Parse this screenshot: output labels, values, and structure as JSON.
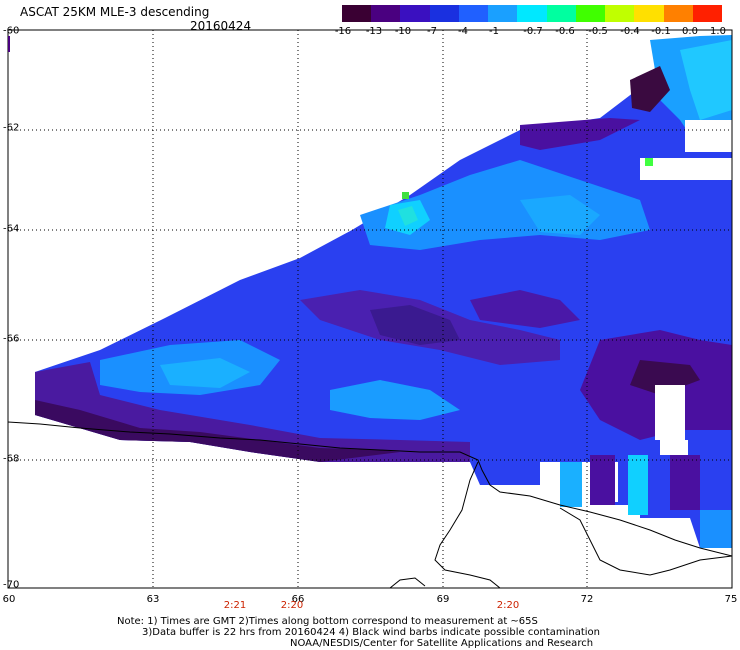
{
  "header": {
    "title": "ASCAT 25KM MLE-3 descending",
    "date": "20160424"
  },
  "colorbar": {
    "labels": [
      "-16",
      "-13",
      "-10",
      "-7",
      "-4",
      "-1",
      "-0.7",
      "-0.6",
      "-0.5",
      "-0.4",
      "-0.1",
      "0.0",
      "1.0"
    ],
    "colors": [
      "#3a0033",
      "#4a0080",
      "#3a10c0",
      "#1a30e0",
      "#2060ff",
      "#1aa0ff",
      "#00e8ff",
      "#00ffa0",
      "#40ff00",
      "#c0ff00",
      "#ffe000",
      "#ff8000",
      "#ff2000"
    ]
  },
  "axes": {
    "lat_labels": [
      "-60",
      "-62",
      "-64",
      "-66",
      "-68",
      "-70"
    ],
    "lon_labels": [
      "60",
      "63",
      "66",
      "69",
      "72",
      "75"
    ]
  },
  "pass_times": [
    "2:21",
    "2:20",
    "2:20"
  ],
  "notes": {
    "line1": "Note: 1) Times are GMT 2)Times along bottom correspond to measurement at ~65S",
    "line2": "3)Data buffer is 22 hrs from 20160424 4) Black wind barbs indicate possible contamination",
    "line3": "NOAA/NESDIS/Center for Satellite Applications and Research"
  }
}
